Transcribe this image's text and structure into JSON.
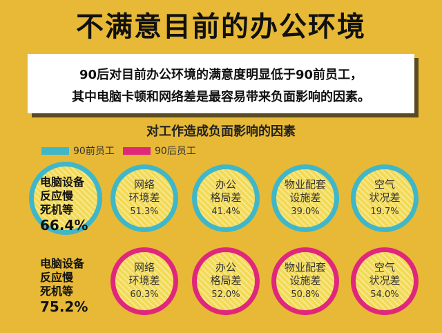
{
  "title": "不满意目前的办公环境",
  "banner": {
    "line1": "90后对目前办公环境的满意度明显低于90前员工，",
    "line2": "其中电脑卡顿和网络差是最容易带来负面影响的因素。"
  },
  "chart_data": {
    "type": "table",
    "title": "对工作造成负面影响的因素",
    "legend": [
      {
        "name": "90前员工",
        "color": "#3fb7c9"
      },
      {
        "name": "90后员工",
        "color": "#e0277c"
      }
    ],
    "categories": [
      "电脑设备反应慢死机等",
      "网络环境差",
      "办公格局差",
      "物业配套设施差",
      "空气状况差"
    ],
    "series": [
      {
        "name": "90前员工",
        "lead_lines": [
          "电脑设备",
          "反应慢",
          "死机等"
        ],
        "lead_value": "66.4%",
        "items": [
          {
            "lines": [
              "网络",
              "环境差"
            ],
            "value": "51.3%"
          },
          {
            "lines": [
              "办公",
              "格局差"
            ],
            "value": "41.4%"
          },
          {
            "lines": [
              "物业配套",
              "设施差"
            ],
            "value": "39.0%"
          },
          {
            "lines": [
              "空气",
              "状况差"
            ],
            "value": "19.7%"
          }
        ],
        "values": [
          66.4,
          51.3,
          41.4,
          39.0,
          19.7
        ]
      },
      {
        "name": "90后员工",
        "lead_lines": [
          "电脑设备",
          "反应慢",
          "死机等"
        ],
        "lead_value": "75.2%",
        "items": [
          {
            "lines": [
              "网络",
              "环境差"
            ],
            "value": "60.3%"
          },
          {
            "lines": [
              "办公",
              "格局差"
            ],
            "value": "52.0%"
          },
          {
            "lines": [
              "物业配套",
              "设施差"
            ],
            "value": "50.8%"
          },
          {
            "lines": [
              "空气",
              "状况差"
            ],
            "value": "54.0%"
          }
        ],
        "values": [
          75.2,
          60.3,
          52.0,
          50.8,
          54.0
        ]
      }
    ]
  }
}
